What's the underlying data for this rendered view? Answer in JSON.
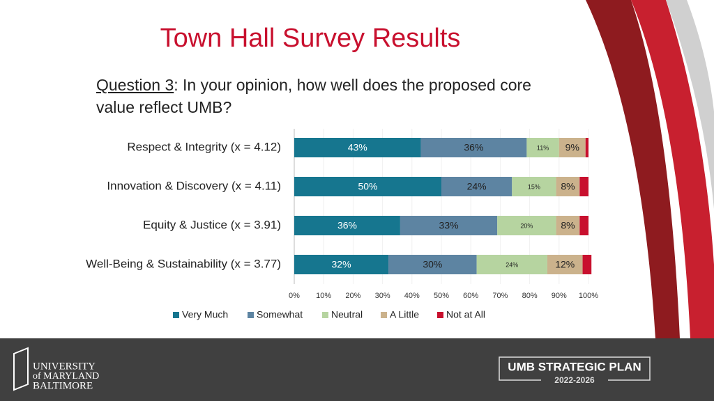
{
  "slide": {
    "question_label": "Question 3",
    "question_text": ": In your opinion, how well does the proposed core value reflect UMB?",
    "logo": [
      "UNIVERSITY",
      "of MARYLAND",
      "BALTIMORE"
    ],
    "plan_title": "UMB STRATEGIC PLAN",
    "plan_years": "2022-2026"
  },
  "chart_data": {
    "type": "stacked-bar-horizontal",
    "title": "Town Hall Survey Results",
    "categories": [
      "Respect & Integrity (x = 4.12)",
      "Innovation & Discovery (x = 4.11)",
      "Equity & Justice (x = 3.91)",
      "Well-Being & Sustainability (x = 3.77)"
    ],
    "series": [
      {
        "name": "Very Much",
        "color": "#16768f",
        "values": [
          43,
          50,
          36,
          32
        ],
        "value_labels": [
          "43%",
          "50%",
          "36%",
          "32%"
        ]
      },
      {
        "name": "Somewhat",
        "color": "#5d84a2",
        "values": [
          36,
          24,
          33,
          30
        ],
        "value_labels": [
          "36%",
          "24%",
          "33%",
          "30%"
        ]
      },
      {
        "name": "Neutral",
        "color": "#b6d4a0",
        "values": [
          11,
          15,
          20,
          24
        ],
        "value_labels": [
          "11%",
          "15%",
          "20%",
          "24%"
        ]
      },
      {
        "name": "A Little",
        "color": "#cbb28c",
        "values": [
          9,
          8,
          8,
          12
        ],
        "value_labels": [
          "9%",
          "8%",
          "8%",
          "12%"
        ]
      },
      {
        "name": "Not at All",
        "color": "#c8102e",
        "values": [
          1,
          3,
          3,
          3
        ],
        "value_labels": [
          null,
          null,
          null,
          null
        ]
      }
    ],
    "xlim": [
      0,
      100
    ],
    "xticks": [
      {
        "value": 0,
        "label": "0%"
      },
      {
        "value": 10,
        "label": "10%"
      },
      {
        "value": 20,
        "label": "20%"
      },
      {
        "value": 30,
        "label": "30%"
      },
      {
        "value": 40,
        "label": "40%"
      },
      {
        "value": 50,
        "label": "50%"
      },
      {
        "value": 60,
        "label": "60%"
      },
      {
        "value": 70,
        "label": "70%"
      },
      {
        "value": 80,
        "label": "80%"
      },
      {
        "value": 90,
        "label": "90%"
      },
      {
        "value": 100,
        "label": "100%"
      }
    ],
    "legend": "bottom"
  }
}
